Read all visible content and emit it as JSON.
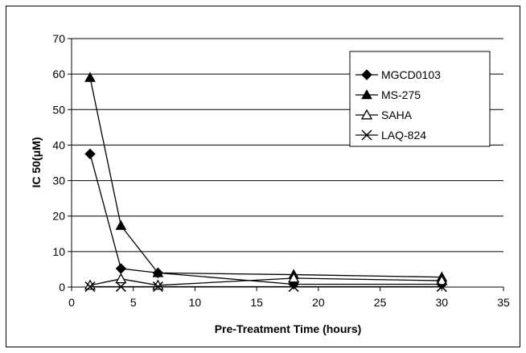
{
  "chart_data": {
    "type": "line",
    "title": "",
    "xlabel": "Pre-Treatment Time (hours)",
    "ylabel": "IC 50(μM)",
    "xlim": [
      0,
      35
    ],
    "ylim": [
      0,
      70
    ],
    "xticks": [
      0,
      5,
      10,
      15,
      20,
      25,
      30,
      35
    ],
    "yticks": [
      0,
      10,
      20,
      30,
      40,
      50,
      60,
      70
    ],
    "grid": "horizontal",
    "legend_position": "top-right",
    "x": [
      1.5,
      4,
      7,
      18,
      30
    ],
    "series": [
      {
        "name": "MGCD0103",
        "marker": "diamond",
        "color": "#000000",
        "values": [
          37.5,
          5.2,
          4.0,
          0.8,
          0.8
        ]
      },
      {
        "name": "MS-275",
        "marker": "triangle",
        "color": "#000000",
        "values": [
          59.0,
          17.3,
          4.0,
          3.5,
          2.8
        ]
      },
      {
        "name": "SAHA",
        "marker": "triangle-open",
        "color": "#000000",
        "values": [
          0.5,
          2.3,
          0.5,
          2.5,
          1.8
        ]
      },
      {
        "name": "LAQ-824",
        "marker": "x",
        "color": "#000000",
        "values": [
          0.1,
          0.1,
          0.1,
          0.1,
          0.1
        ]
      }
    ]
  }
}
